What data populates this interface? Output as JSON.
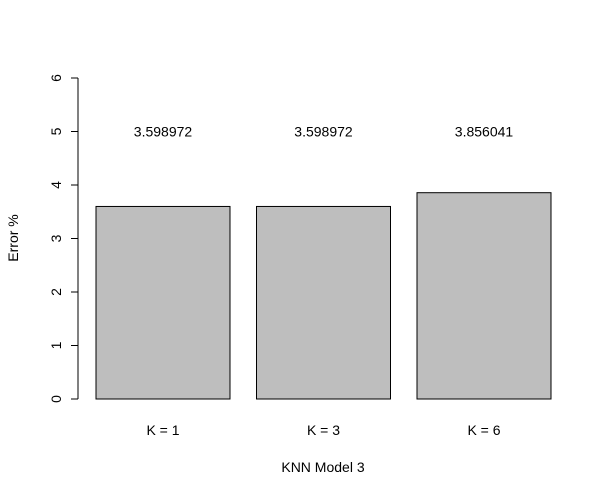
{
  "chart_data": {
    "type": "bar",
    "title": "",
    "categories": [
      "K = 1",
      "K = 3",
      "K = 6"
    ],
    "values": [
      3.598972,
      3.598972,
      3.856041
    ],
    "value_labels": [
      "3.598972",
      "3.598972",
      "3.856041"
    ],
    "xlabel": "KNN Model 3",
    "ylabel": "Error %",
    "ylim": [
      0,
      6
    ],
    "yticks": [
      0,
      1,
      2,
      3,
      4,
      5,
      6
    ],
    "ytick_labels": [
      "0",
      "1",
      "2",
      "3",
      "4",
      "5",
      "6"
    ],
    "grid": false,
    "bar_color": "#bebebe",
    "value_label_position": "above plot at y = 5"
  }
}
